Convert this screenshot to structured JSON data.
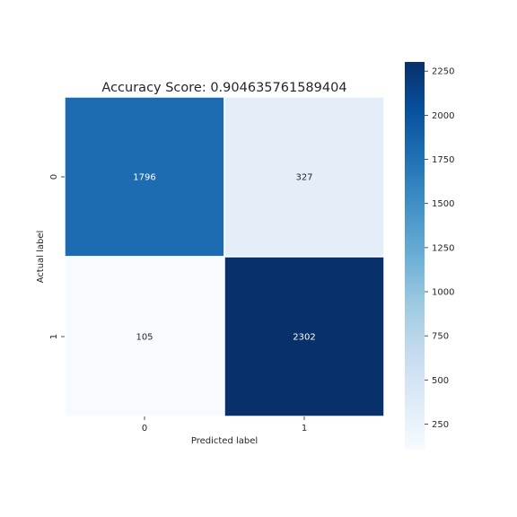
{
  "chart_data": {
    "type": "heatmap",
    "title": "Accuracy Score: 0.904635761589404",
    "xlabel": "Predicted label",
    "ylabel": "Actual label",
    "x_categories": [
      "0",
      "1"
    ],
    "y_categories": [
      "0",
      "1"
    ],
    "values": [
      [
        1796,
        327
      ],
      [
        105,
        2302
      ]
    ],
    "colormap": "Blues",
    "vmin": 105,
    "vmax": 2302,
    "colorbar_ticks": [
      250,
      500,
      750,
      1000,
      1250,
      1500,
      1750,
      2000,
      2250
    ],
    "cell_text_dark": "#262626",
    "cell_text_light": "#ffffff"
  }
}
